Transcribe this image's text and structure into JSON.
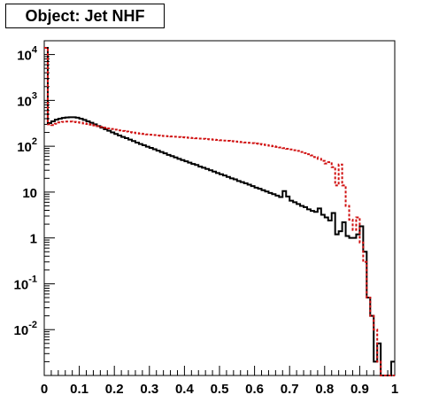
{
  "chart_data": {
    "type": "histogram",
    "title": "Object: Jet NHF",
    "xlabel": "",
    "ylabel": "",
    "xlim": [
      0,
      1
    ],
    "ylim": [
      0.001,
      20000
    ],
    "y_scale": "log",
    "grid": false,
    "legend": "none",
    "bins": 100,
    "x_ticks": [
      {
        "value": 0,
        "label": "0"
      },
      {
        "value": 0.1,
        "label": "0.1"
      },
      {
        "value": 0.2,
        "label": "0.2"
      },
      {
        "value": 0.3,
        "label": "0.3"
      },
      {
        "value": 0.4,
        "label": "0.4"
      },
      {
        "value": 0.5,
        "label": "0.5"
      },
      {
        "value": 0.6,
        "label": "0.6"
      },
      {
        "value": 0.7,
        "label": "0.7"
      },
      {
        "value": 0.8,
        "label": "0.8"
      },
      {
        "value": 0.9,
        "label": "0.9"
      },
      {
        "value": 1,
        "label": "1"
      }
    ],
    "y_ticks": [
      {
        "value": 0.01,
        "base": "10",
        "exp": "-2"
      },
      {
        "value": 0.1,
        "base": "10",
        "exp": "-1"
      },
      {
        "value": 1,
        "base": "1",
        "exp": ""
      },
      {
        "value": 10,
        "base": "10",
        "exp": ""
      },
      {
        "value": 100,
        "base": "10",
        "exp": "2"
      },
      {
        "value": 1000,
        "base": "10",
        "exp": "3"
      },
      {
        "value": 10000,
        "base": "10",
        "exp": "4"
      }
    ],
    "series": [
      {
        "color": "#000000",
        "style": "solid",
        "values": [
          14000,
          320,
          350,
          380,
          400,
          415,
          425,
          430,
          430,
          420,
          400,
          375,
          350,
          325,
          300,
          275,
          255,
          235,
          218,
          200,
          185,
          172,
          160,
          150,
          140,
          130,
          120,
          112,
          105,
          98,
          92,
          86,
          80,
          75,
          70,
          65,
          61,
          57,
          53,
          50,
          47,
          44,
          41,
          39,
          36,
          34,
          32,
          30,
          28,
          26,
          24.5,
          23,
          21.5,
          20,
          19,
          17.5,
          16.5,
          15.5,
          14.5,
          13.5,
          12.5,
          11.8,
          11,
          10.3,
          9.6,
          9,
          8.4,
          7.8,
          10.5,
          8,
          6.5,
          6,
          5.5,
          5,
          4.7,
          4.2,
          3.9,
          3.7,
          4.4,
          3.2,
          2.8,
          2.4,
          3.5,
          1.2,
          1.4,
          2.2,
          1.1,
          1,
          1,
          1.2,
          1.8,
          0.5,
          0.05,
          0.02,
          0.002,
          0.005,
          0.0008,
          0.0008,
          0.0008,
          0.002
        ]
      },
      {
        "color": "#d01010",
        "style": "dotted",
        "values": [
          14000,
          300,
          290,
          310,
          330,
          340,
          345,
          345,
          340,
          335,
          325,
          315,
          305,
          295,
          285,
          275,
          265,
          255,
          245,
          238,
          230,
          222,
          215,
          209,
          203,
          198,
          193,
          189,
          185,
          181,
          178,
          175,
          172,
          169,
          167,
          165,
          163,
          161,
          159,
          157,
          155,
          153,
          151,
          149,
          147,
          145,
          143,
          141,
          139,
          137,
          135,
          133,
          131,
          129,
          127,
          125,
          123,
          121,
          119,
          117,
          115,
          112,
          109,
          106,
          103,
          100,
          97,
          94,
          91,
          88,
          85,
          82,
          79,
          75,
          71,
          67,
          63,
          58,
          53,
          48,
          42,
          45,
          35,
          14,
          40,
          14,
          5,
          2.5,
          1.5,
          2.8,
          0.8,
          0.3,
          0.05,
          0.02,
          0.01,
          0.002,
          0.0008,
          0.0008,
          0.0008,
          0.0008
        ]
      }
    ]
  }
}
